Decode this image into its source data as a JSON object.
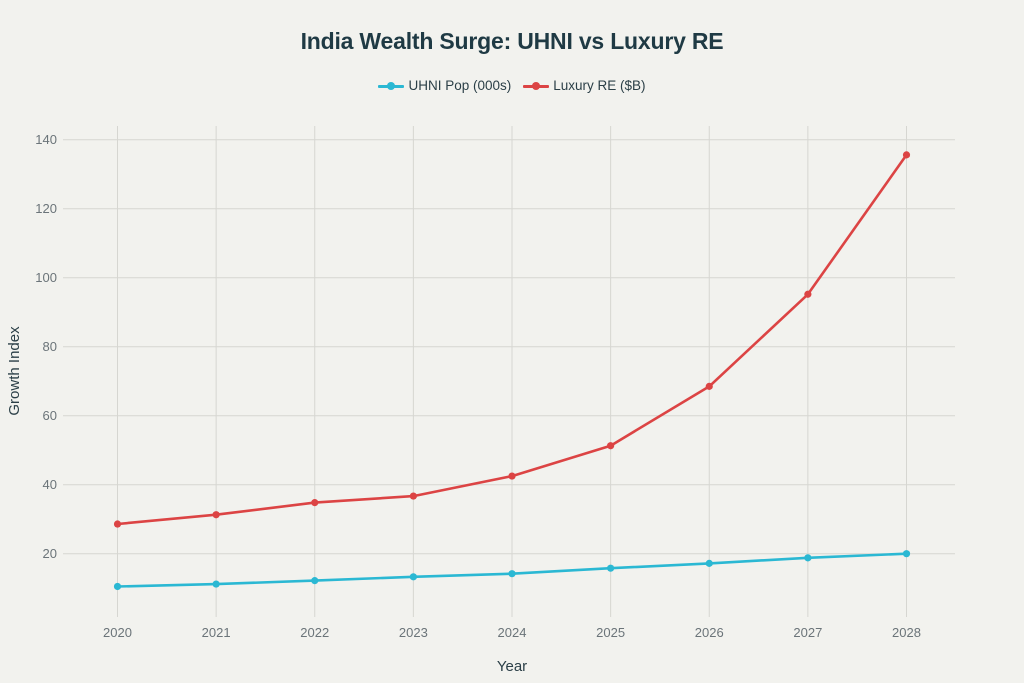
{
  "chart_data": {
    "type": "line",
    "title": "India Wealth Surge: UHNI vs Luxury RE",
    "xlabel": "Year",
    "ylabel": "Growth Index",
    "x": [
      "2020",
      "2021",
      "2022",
      "2023",
      "2024",
      "2025",
      "2026",
      "2027",
      "2028"
    ],
    "yticks": [
      20,
      40,
      60,
      80,
      100,
      120,
      140
    ],
    "ylim": [
      0,
      142
    ],
    "grid": true,
    "legend_position": "top-center",
    "series": [
      {
        "name": "UHNI Pop (000s)",
        "color": "#2bb8d3",
        "values": [
          10.5,
          11.2,
          12.2,
          13.3,
          14.2,
          15.8,
          17.2,
          18.8,
          20.0
        ]
      },
      {
        "name": "Luxury RE ($B)",
        "color": "#dc4444",
        "values": [
          28.6,
          31.3,
          34.8,
          36.7,
          42.5,
          51.3,
          68.5,
          95.2,
          135.6
        ]
      }
    ]
  }
}
